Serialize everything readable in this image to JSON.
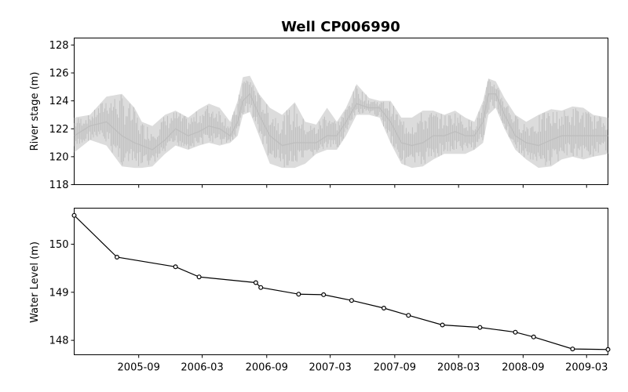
{
  "chart_data": {
    "title": "Well CP006990",
    "x_range": [
      "2005-03-01",
      "2009-05-01"
    ],
    "xticks": [
      "2005-09",
      "2006-03",
      "2006-09",
      "2007-03",
      "2007-09",
      "2008-03",
      "2008-09",
      "2009-03"
    ],
    "panels": [
      {
        "type": "line",
        "ylabel": "River stage (m)",
        "ylim": [
          118,
          128.5
        ],
        "yticks": [
          "118",
          "120",
          "122",
          "124",
          "126",
          "128"
        ],
        "color": "#bfbfbf",
        "band": {
          "x": [
            "2005-03-01",
            "2005-04-15",
            "2005-06-01",
            "2005-07-15",
            "2005-08-20",
            "2005-09-10",
            "2005-10-10",
            "2005-11-15",
            "2005-12-15",
            "2006-01-20",
            "2006-02-20",
            "2006-03-20",
            "2006-04-20",
            "2006-05-20",
            "2006-06-10",
            "2006-06-25",
            "2006-07-15",
            "2006-08-10",
            "2006-09-10",
            "2006-10-15",
            "2006-11-20",
            "2006-12-20",
            "2007-01-20",
            "2007-02-20",
            "2007-03-20",
            "2007-04-15",
            "2007-05-15",
            "2007-06-20",
            "2007-07-20",
            "2007-08-20",
            "2007-09-20",
            "2007-10-20",
            "2007-11-20",
            "2007-12-20",
            "2008-01-20",
            "2008-02-20",
            "2008-03-20",
            "2008-04-15",
            "2008-05-10",
            "2008-05-25",
            "2008-06-15",
            "2008-07-10",
            "2008-08-10",
            "2008-09-10",
            "2008-10-15",
            "2008-11-20",
            "2008-12-20",
            "2009-01-20",
            "2009-02-20",
            "2009-03-20",
            "2009-05-01"
          ],
          "low": [
            120.3,
            121.2,
            120.8,
            119.3,
            119.2,
            119.2,
            119.3,
            120.2,
            120.8,
            120.5,
            120.8,
            121.0,
            120.8,
            121.0,
            121.5,
            123.0,
            123.2,
            121.5,
            119.5,
            119.2,
            119.2,
            119.5,
            120.2,
            120.5,
            120.5,
            121.5,
            123.0,
            123.0,
            122.8,
            121.0,
            119.5,
            119.2,
            119.3,
            119.8,
            120.2,
            120.2,
            120.2,
            120.5,
            121.0,
            123.0,
            123.5,
            122.0,
            120.5,
            119.8,
            119.2,
            119.3,
            119.8,
            120.0,
            119.8,
            120.0,
            120.2
          ],
          "high": [
            122.8,
            123.0,
            124.3,
            124.5,
            123.5,
            122.5,
            122.2,
            123.0,
            123.3,
            122.8,
            123.4,
            123.8,
            123.5,
            122.5,
            124.0,
            125.7,
            125.8,
            124.5,
            123.5,
            123.0,
            123.9,
            122.5,
            122.3,
            123.5,
            122.5,
            123.5,
            125.2,
            124.2,
            124.0,
            124.0,
            122.8,
            122.8,
            123.3,
            123.3,
            123.0,
            123.3,
            122.8,
            122.5,
            124.0,
            125.6,
            125.4,
            124.2,
            123.0,
            122.5,
            123.0,
            123.4,
            123.3,
            123.6,
            123.5,
            123.0,
            122.8
          ],
          "typical": [
            121.5,
            122.2,
            122.5,
            121.5,
            121.0,
            120.8,
            120.5,
            121.2,
            122.0,
            121.5,
            121.8,
            122.2,
            122.0,
            121.5,
            122.5,
            124.0,
            124.5,
            123.0,
            121.5,
            120.8,
            121.0,
            121.0,
            121.0,
            121.5,
            121.5,
            122.5,
            123.8,
            123.5,
            123.5,
            122.5,
            121.0,
            120.8,
            121.0,
            121.5,
            121.5,
            121.8,
            121.5,
            121.5,
            122.5,
            124.5,
            124.5,
            123.0,
            121.5,
            121.0,
            120.8,
            121.2,
            121.5,
            121.5,
            121.5,
            121.5,
            121.5
          ]
        }
      },
      {
        "type": "line",
        "ylabel": "Water Level (m)",
        "ylim": [
          147.7,
          150.75
        ],
        "yticks": [
          "148",
          "149",
          "150"
        ],
        "color": "#000000",
        "x": [
          "2005-03-01",
          "2005-07-01",
          "2005-12-15",
          "2006-02-20",
          "2006-08-01",
          "2006-08-15",
          "2006-12-01",
          "2007-02-10",
          "2007-05-01",
          "2007-08-01",
          "2007-10-10",
          "2008-01-15",
          "2008-05-01",
          "2008-08-10",
          "2008-10-01",
          "2009-01-20",
          "2009-05-01"
        ],
        "y": [
          150.6,
          149.73,
          149.53,
          149.32,
          149.2,
          149.1,
          148.96,
          148.95,
          148.83,
          148.67,
          148.52,
          148.32,
          148.27,
          148.17,
          148.07,
          147.82,
          147.81
        ]
      }
    ]
  }
}
